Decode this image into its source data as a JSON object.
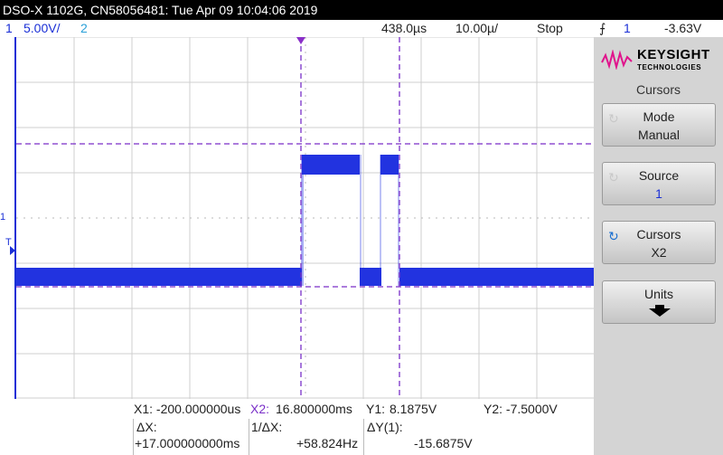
{
  "title_bar": "DSO-X 1102G, CN58056481: Tue Apr 09 10:04:06 2019",
  "status": {
    "ch1_number": "1",
    "ch1_scale": "5.00V/",
    "ch2_number": "2",
    "delay": "438.0µs",
    "time_scale": "10.00µ/",
    "acq_mode": "Stop",
    "trigger_icon": "⨍",
    "trigger_source": "1",
    "trigger_level": "-3.63V"
  },
  "screen": {
    "ch1_marker": "1",
    "trigger_marker": "T"
  },
  "side_panel": {
    "brand": "KEYSIGHT",
    "brand_sub": "TECHNOLOGIES",
    "menu_title": "Cursors",
    "softkeys": [
      {
        "label": "Mode",
        "value": "Manual"
      },
      {
        "label": "Source",
        "value": "1"
      },
      {
        "label": "Cursors",
        "value": "X2"
      },
      {
        "label": "Units",
        "value": ""
      }
    ]
  },
  "cursor_readout": {
    "x1": "X1: -200.000000us",
    "x2": "X2:",
    "x2_value": "16.800000ms",
    "y1": "Y1:",
    "y1_value": "8.1875V",
    "y2": "Y2: -7.5000V",
    "dx_label": "ΔX:",
    "dx_value": "+17.000000000ms",
    "inv_dx_label": "1/ΔX:",
    "inv_dx_value": "+58.824Hz",
    "dy_label": "ΔY(1):",
    "dy_value": "-15.6875V"
  },
  "colors": {
    "ch1": "#1a2fd6",
    "ch2": "#2aa0d8",
    "cursor": "#7a2fc8",
    "knob_active": "#1a6fd0"
  }
}
